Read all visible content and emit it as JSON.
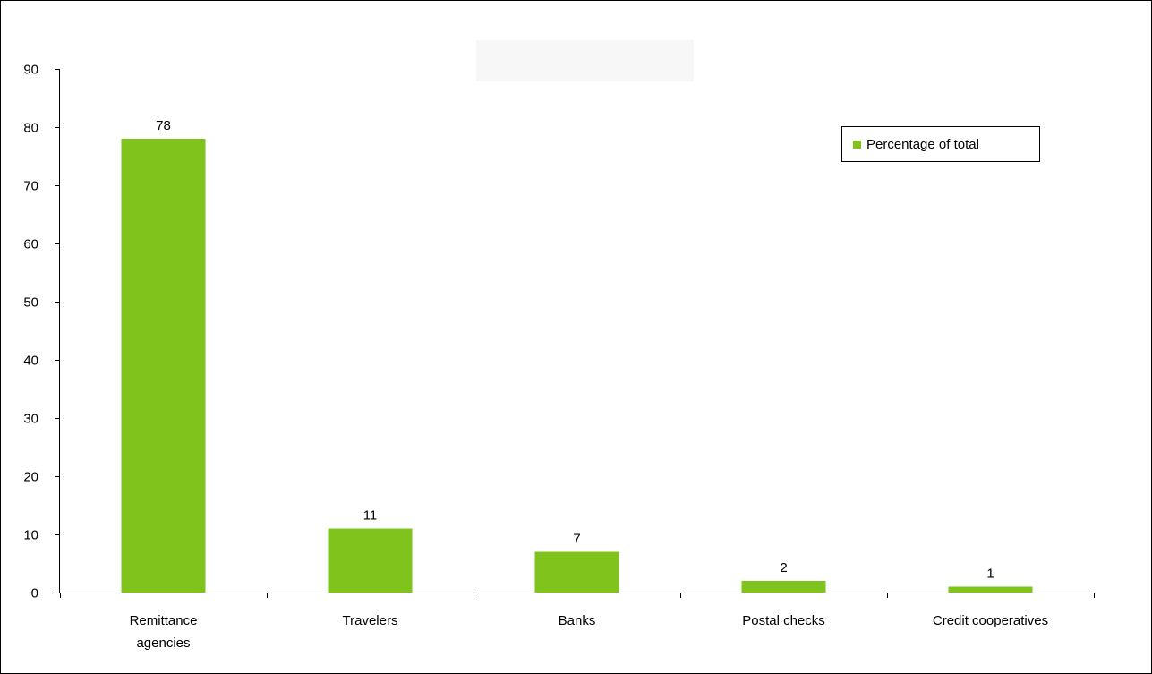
{
  "chart_data": {
    "type": "bar",
    "title": "",
    "xlabel": "",
    "ylabel": "",
    "categories": [
      [
        "Remittance",
        "agencies"
      ],
      [
        "Travelers"
      ],
      [
        "Banks"
      ],
      [
        "Postal checks"
      ],
      [
        "Credit cooperatives"
      ]
    ],
    "series": [
      {
        "name": "Percentage of total",
        "values": [
          78,
          11,
          7,
          2,
          1
        ],
        "color": "#7fc31c"
      }
    ],
    "ylim": [
      0,
      90
    ],
    "yticks": [
      0,
      10,
      20,
      30,
      40,
      50,
      60,
      70,
      80,
      90
    ],
    "data_labels": [
      "78",
      "11",
      "7",
      "2",
      "1"
    ],
    "grid": false,
    "legend_position": "top-right"
  }
}
